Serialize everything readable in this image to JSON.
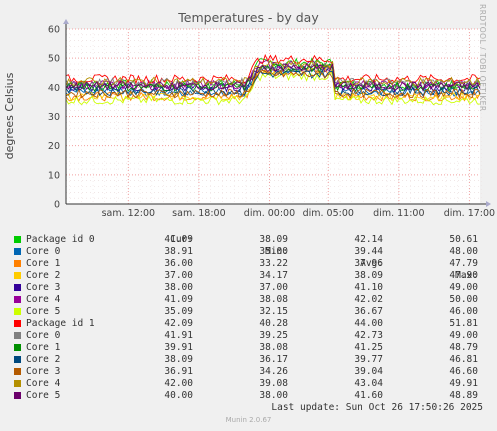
{
  "title": "Temperatures - by day",
  "side_label": "RRDTOOL / TOBI OETIKER",
  "footer": "Munin 2.0.67",
  "last_update": "Last update: Sun Oct 26 17:50:26 2025",
  "legend_header": {
    "cur": "Cur:",
    "min": "Min:",
    "avg": "Avg:",
    "max": "Max:"
  },
  "chart_data": {
    "type": "line",
    "title": "Temperatures - by day",
    "ylabel": "degrees Celsius",
    "ylim": [
      0,
      60
    ],
    "yticks": [
      0,
      10,
      20,
      30,
      40,
      50,
      60
    ],
    "x_ticks": [
      "sam. 12:00",
      "sam. 18:00",
      "dim. 00:00",
      "dim. 05:00",
      "dim. 11:00",
      "dim. 17:00"
    ],
    "grid": true,
    "series": [
      {
        "name": "Package id 0",
        "color": "#00cc00",
        "cur": "41.09",
        "min": "38.09",
        "avg": "42.14",
        "max": "50.61"
      },
      {
        "name": "Core 0",
        "color": "#0066b3",
        "cur": "38.91",
        "min": "35.00",
        "avg": "39.44",
        "max": "48.00"
      },
      {
        "name": "Core 1",
        "color": "#ff8000",
        "cur": "36.00",
        "min": "33.22",
        "avg": "37.96",
        "max": "47.79"
      },
      {
        "name": "Core 2",
        "color": "#ffcc00",
        "cur": "37.00",
        "min": "34.17",
        "avg": "38.09",
        "max": "47.90"
      },
      {
        "name": "Core 3",
        "color": "#330099",
        "cur": "38.00",
        "min": "37.00",
        "avg": "41.10",
        "max": "49.00"
      },
      {
        "name": "Core 4",
        "color": "#990099",
        "cur": "41.09",
        "min": "38.08",
        "avg": "42.02",
        "max": "50.00"
      },
      {
        "name": "Core 5",
        "color": "#ccff00",
        "cur": "35.09",
        "min": "32.15",
        "avg": "36.67",
        "max": "46.00"
      },
      {
        "name": "Package id 1",
        "color": "#ff0000",
        "cur": "42.09",
        "min": "40.28",
        "avg": "44.00",
        "max": "51.81"
      },
      {
        "name": "Core 0",
        "color": "#808080",
        "cur": "41.91",
        "min": "39.25",
        "avg": "42.73",
        "max": "49.00"
      },
      {
        "name": "Core 1",
        "color": "#008f00",
        "cur": "39.91",
        "min": "38.08",
        "avg": "41.25",
        "max": "48.79"
      },
      {
        "name": "Core 2",
        "color": "#00487d",
        "cur": "38.09",
        "min": "36.17",
        "avg": "39.77",
        "max": "46.81"
      },
      {
        "name": "Core 3",
        "color": "#b35a00",
        "cur": "36.91",
        "min": "34.26",
        "avg": "39.04",
        "max": "46.60"
      },
      {
        "name": "Core 4",
        "color": "#b38f00",
        "cur": "42.00",
        "min": "39.08",
        "avg": "43.04",
        "max": "49.91"
      },
      {
        "name": "Core 5",
        "color": "#6b006b",
        "cur": "40.00",
        "min": "38.00",
        "avg": "41.60",
        "max": "48.89"
      }
    ]
  }
}
